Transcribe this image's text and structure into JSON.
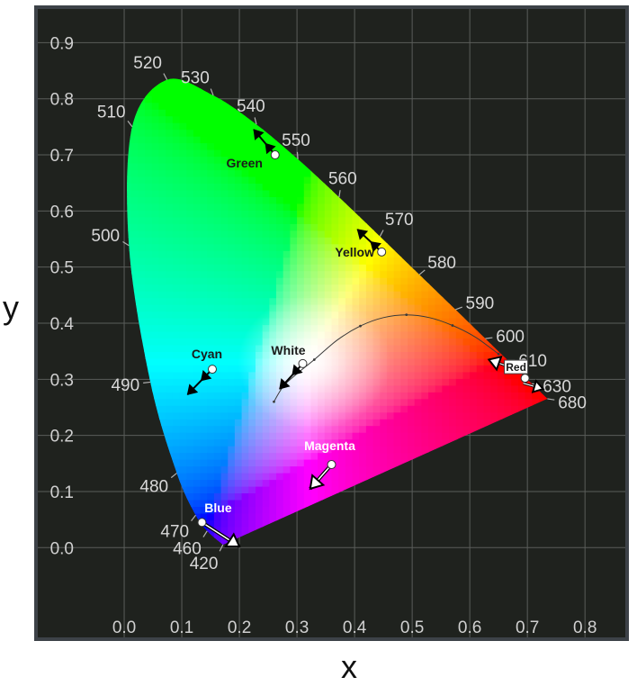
{
  "chart_data": {
    "type": "scatter",
    "title": "",
    "xlabel": "x",
    "ylabel": "y",
    "xlim": [
      -0.15,
      0.87
    ],
    "ylim": [
      -0.16,
      0.96
    ],
    "x_ticks": [
      "0.0",
      "0.1",
      "0.2",
      "0.3",
      "0.4",
      "0.5",
      "0.6",
      "0.7",
      "0.8"
    ],
    "y_ticks": [
      "0.0",
      "0.1",
      "0.2",
      "0.3",
      "0.4",
      "0.5",
      "0.6",
      "0.7",
      "0.8",
      "0.9"
    ],
    "grid": true,
    "spectral_locus": [
      {
        "nm": "420",
        "x": 0.1714,
        "y": 0.0051
      },
      {
        "nm": "460",
        "x": 0.144,
        "y": 0.0297
      },
      {
        "nm": "470",
        "x": 0.1241,
        "y": 0.0578
      },
      {
        "nm": "480",
        "x": 0.0913,
        "y": 0.1327
      },
      {
        "nm": "490",
        "x": 0.0454,
        "y": 0.295
      },
      {
        "nm": "500",
        "x": 0.0082,
        "y": 0.5384
      },
      {
        "nm": "510",
        "x": 0.0139,
        "y": 0.7502
      },
      {
        "nm": "520",
        "x": 0.0743,
        "y": 0.8338
      },
      {
        "nm": "530",
        "x": 0.1547,
        "y": 0.8059
      },
      {
        "nm": "540",
        "x": 0.2296,
        "y": 0.7543
      },
      {
        "nm": "550",
        "x": 0.3016,
        "y": 0.6923
      },
      {
        "nm": "560",
        "x": 0.3731,
        "y": 0.6245
      },
      {
        "nm": "570",
        "x": 0.4441,
        "y": 0.5547
      },
      {
        "nm": "580",
        "x": 0.5125,
        "y": 0.4866
      },
      {
        "nm": "590",
        "x": 0.5752,
        "y": 0.4242
      },
      {
        "nm": "600",
        "x": 0.627,
        "y": 0.3725
      },
      {
        "nm": "610",
        "x": 0.6658,
        "y": 0.334
      },
      {
        "nm": "630",
        "x": 0.7079,
        "y": 0.292
      },
      {
        "nm": "680",
        "x": 0.7347,
        "y": 0.2653
      }
    ],
    "planckian_locus": [
      {
        "x": 0.26,
        "y": 0.26
      },
      {
        "x": 0.27,
        "y": 0.278
      },
      {
        "x": 0.28,
        "y": 0.292
      },
      {
        "x": 0.3,
        "y": 0.31
      },
      {
        "x": 0.33,
        "y": 0.335
      },
      {
        "x": 0.37,
        "y": 0.37
      },
      {
        "x": 0.41,
        "y": 0.395
      },
      {
        "x": 0.45,
        "y": 0.41
      },
      {
        "x": 0.49,
        "y": 0.415
      },
      {
        "x": 0.53,
        "y": 0.41
      },
      {
        "x": 0.57,
        "y": 0.396
      },
      {
        "x": 0.61,
        "y": 0.375
      },
      {
        "x": 0.65,
        "y": 0.345
      }
    ],
    "points": [
      {
        "label": "Green",
        "x": 0.262,
        "y": 0.7,
        "label_color": "#1a1a1a",
        "arrow_to": {
          "x": 0.225,
          "y": 0.745
        },
        "arrow_style": "double"
      },
      {
        "label": "Yellow",
        "x": 0.447,
        "y": 0.527,
        "label_color": "#1a1a1a",
        "arrow_to": {
          "x": 0.405,
          "y": 0.567
        },
        "arrow_style": "double"
      },
      {
        "label": "White",
        "x": 0.31,
        "y": 0.328,
        "label_color": "#1a1a1a",
        "arrow_to": {
          "x": 0.27,
          "y": 0.283
        },
        "arrow_style": "double"
      },
      {
        "label": "Cyan",
        "x": 0.153,
        "y": 0.318,
        "label_color": "#1a1a1a",
        "arrow_to": {
          "x": 0.11,
          "y": 0.273
        },
        "arrow_style": "double"
      },
      {
        "label": "Red",
        "x": 0.696,
        "y": 0.302,
        "label_color": "#1a1a1a",
        "arrow_to": {
          "x": 0.63,
          "y": 0.326
        },
        "arrow_style": "hollow-pair"
      },
      {
        "label": "Magenta",
        "x": 0.36,
        "y": 0.148,
        "label_color": "#ffffff",
        "arrow_to": {
          "x": 0.323,
          "y": 0.105
        },
        "arrow_style": "hollow"
      },
      {
        "label": "Blue",
        "x": 0.135,
        "y": 0.045,
        "label_color": "#ffffff",
        "arrow_to": {
          "x": 0.2,
          "y": 0.002
        },
        "arrow_style": "hollow"
      }
    ]
  },
  "colors": {
    "background": "#1f221e",
    "frame": "#3d4248",
    "grid": "#5a5d5a",
    "tick_text": "#d0d0d0",
    "locus_label": "#d8d8d8",
    "axis_label": "#111111"
  }
}
